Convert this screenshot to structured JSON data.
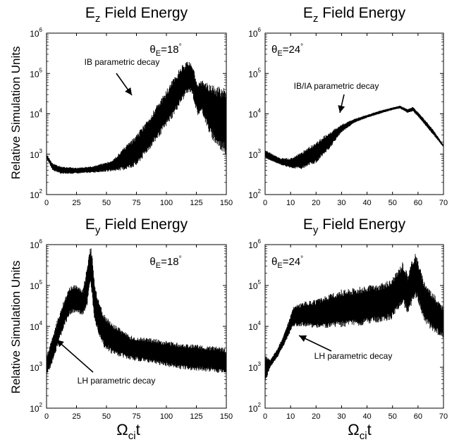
{
  "figure": {
    "ylabel": "Relative Simulation Units",
    "xlabel_main": "Ω",
    "xlabel_sub": "ci",
    "xlabel_tail": "t",
    "colors": {
      "trace": "#000000",
      "axes": "#000000",
      "background": "#ffffff"
    }
  },
  "chart_data": [
    {
      "type": "area",
      "title_main": "E",
      "title_sub": "z",
      "title_tail": " Field Energy",
      "xlim": [
        0,
        150
      ],
      "xticks": [
        0,
        25,
        50,
        75,
        100,
        125,
        150
      ],
      "yscale": "log",
      "ylim": [
        100,
        1000000
      ],
      "yticks": [
        {
          "base": "10",
          "exp": "2"
        },
        {
          "base": "10",
          "exp": "3"
        },
        {
          "base": "10",
          "exp": "4"
        },
        {
          "base": "10",
          "exp": "5"
        },
        {
          "base": "10",
          "exp": "6"
        }
      ],
      "annotation_theta": {
        "symbol": "θ",
        "sub": "E",
        "value": "=18",
        "deg": "°"
      },
      "annotation_text": "IB parametric decay",
      "envelope_x": [
        0,
        5,
        12,
        25,
        40,
        55,
        65,
        75,
        85,
        95,
        105,
        112,
        117,
        121,
        126,
        130,
        136,
        142,
        150
      ],
      "envelope_upper": [
        1000,
        600,
        500,
        460,
        520,
        700,
        1500,
        3000,
        8000,
        22000,
        70000,
        150000,
        200000,
        190000,
        60000,
        70000,
        55000,
        48000,
        45000
      ],
      "envelope_lower": [
        800,
        400,
        320,
        330,
        350,
        380,
        400,
        500,
        1200,
        3000,
        8000,
        18000,
        30000,
        35000,
        9000,
        10000,
        3000,
        1500,
        900
      ]
    },
    {
      "type": "area",
      "title_main": "E",
      "title_sub": "z",
      "title_tail": " Field Energy",
      "xlim": [
        0,
        70
      ],
      "xticks": [
        0,
        10,
        20,
        30,
        40,
        50,
        60,
        70
      ],
      "yscale": "log",
      "ylim": [
        100,
        1000000
      ],
      "yticks": [
        {
          "base": "10",
          "exp": "2"
        },
        {
          "base": "10",
          "exp": "3"
        },
        {
          "base": "10",
          "exp": "4"
        },
        {
          "base": "10",
          "exp": "5"
        },
        {
          "base": "10",
          "exp": "6"
        }
      ],
      "annotation_theta": {
        "symbol": "θ",
        "sub": "E",
        "value": "=24",
        "deg": "°"
      },
      "annotation_text": "IB/IA parametric decay",
      "envelope_x": [
        0,
        3,
        6,
        10,
        14,
        20,
        25,
        30,
        35,
        40,
        45,
        50,
        53,
        56,
        58,
        60,
        62,
        66,
        70
      ],
      "envelope_upper": [
        1300,
        1000,
        800,
        800,
        1100,
        2000,
        3500,
        5500,
        7500,
        9500,
        12000,
        14500,
        16000,
        13000,
        15000,
        11000,
        8000,
        4000,
        1700
      ],
      "envelope_lower": [
        800,
        650,
        550,
        450,
        420,
        600,
        1300,
        3500,
        6000,
        8000,
        10000,
        12500,
        13500,
        10500,
        11500,
        8500,
        6000,
        3000,
        1500
      ]
    },
    {
      "type": "area",
      "title_main": "E",
      "title_sub": "y",
      "title_tail": " Field Energy",
      "xlim": [
        0,
        150
      ],
      "xticks": [
        0,
        25,
        50,
        75,
        100,
        125,
        150
      ],
      "yscale": "log",
      "ylim": [
        100,
        1000000
      ],
      "yticks": [
        {
          "base": "10",
          "exp": "2"
        },
        {
          "base": "10",
          "exp": "3"
        },
        {
          "base": "10",
          "exp": "4"
        },
        {
          "base": "10",
          "exp": "5"
        },
        {
          "base": "10",
          "exp": "6"
        }
      ],
      "annotation_theta": {
        "symbol": "θ",
        "sub": "E",
        "value": "=18",
        "deg": "°"
      },
      "annotation_text": "LH parametric decay",
      "envelope_x": [
        0,
        3,
        8,
        15,
        20,
        25,
        30,
        34,
        36,
        37,
        38,
        40,
        43,
        48,
        55,
        70,
        90,
        110,
        130,
        150
      ],
      "envelope_upper": [
        2000,
        3500,
        12000,
        50000,
        100000,
        110000,
        80000,
        300000,
        700000,
        1000000,
        600000,
        120000,
        50000,
        20000,
        12000,
        6000,
        5000,
        4000,
        3500,
        3000
      ],
      "envelope_lower": [
        600,
        900,
        2500,
        10000,
        20000,
        20000,
        18000,
        30000,
        80000,
        100000,
        50000,
        15000,
        7000,
        3000,
        2000,
        1500,
        1200,
        900,
        800,
        700
      ]
    },
    {
      "type": "area",
      "title_main": "E",
      "title_sub": "y",
      "title_tail": " Field Energy",
      "xlim": [
        0,
        70
      ],
      "xticks": [
        0,
        10,
        20,
        30,
        40,
        50,
        60,
        70
      ],
      "yscale": "log",
      "ylim": [
        100,
        1000000
      ],
      "yticks": [
        {
          "base": "10",
          "exp": "2"
        },
        {
          "base": "10",
          "exp": "3"
        },
        {
          "base": "10",
          "exp": "4"
        },
        {
          "base": "10",
          "exp": "5"
        },
        {
          "base": "10",
          "exp": "6"
        }
      ],
      "annotation_theta": {
        "symbol": "θ",
        "sub": "E",
        "value": "=24",
        "deg": "°"
      },
      "annotation_text": "LH parametric decay",
      "envelope_x": [
        0,
        2,
        5,
        8,
        11,
        15,
        20,
        25,
        30,
        35,
        40,
        45,
        50,
        54,
        56,
        58,
        59,
        60,
        62,
        65,
        70
      ],
      "envelope_upper": [
        2000,
        1500,
        3000,
        8000,
        30000,
        40000,
        45000,
        60000,
        80000,
        90000,
        100000,
        110000,
        150000,
        400000,
        200000,
        500000,
        600000,
        450000,
        150000,
        80000,
        30000
      ],
      "envelope_lower": [
        400,
        1000,
        1800,
        4000,
        10000,
        10000,
        9000,
        9000,
        9500,
        10000,
        11000,
        12000,
        15000,
        35000,
        20000,
        40000,
        50000,
        40000,
        15000,
        8000,
        5000
      ]
    }
  ]
}
